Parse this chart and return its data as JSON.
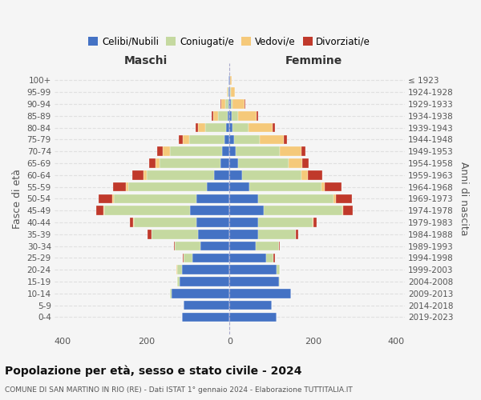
{
  "age_groups": [
    "0-4",
    "5-9",
    "10-14",
    "15-19",
    "20-24",
    "25-29",
    "30-34",
    "35-39",
    "40-44",
    "45-49",
    "50-54",
    "55-59",
    "60-64",
    "65-69",
    "70-74",
    "75-79",
    "80-84",
    "85-89",
    "90-94",
    "95-99",
    "100+"
  ],
  "birth_years": [
    "2019-2023",
    "2014-2018",
    "2009-2013",
    "2004-2008",
    "1999-2003",
    "1994-1998",
    "1989-1993",
    "1984-1988",
    "1979-1983",
    "1974-1978",
    "1969-1973",
    "1964-1968",
    "1959-1963",
    "1954-1958",
    "1949-1953",
    "1944-1948",
    "1939-1943",
    "1934-1938",
    "1929-1933",
    "1924-1928",
    "≤ 1923"
  ],
  "colors": {
    "celibi": "#4472C4",
    "coniugati": "#c5d9a0",
    "vedovi": "#f5c97a",
    "divorziati": "#c0392b"
  },
  "maschi": {
    "celibi": [
      115,
      110,
      140,
      120,
      115,
      90,
      70,
      75,
      80,
      95,
      80,
      55,
      38,
      22,
      18,
      12,
      8,
      5,
      3,
      2,
      2
    ],
    "coniugati": [
      0,
      0,
      3,
      5,
      10,
      20,
      62,
      112,
      150,
      205,
      198,
      188,
      160,
      145,
      125,
      85,
      50,
      22,
      8,
      2,
      0
    ],
    "vedovi": [
      0,
      0,
      0,
      0,
      2,
      0,
      0,
      1,
      2,
      3,
      4,
      5,
      8,
      10,
      18,
      16,
      18,
      12,
      8,
      3,
      1
    ],
    "divorziati": [
      0,
      0,
      0,
      0,
      0,
      2,
      2,
      8,
      8,
      16,
      32,
      32,
      28,
      15,
      12,
      8,
      5,
      3,
      2,
      0,
      0
    ]
  },
  "femmine": {
    "celibi": [
      112,
      102,
      148,
      118,
      112,
      88,
      62,
      68,
      68,
      82,
      68,
      48,
      30,
      20,
      15,
      10,
      8,
      5,
      3,
      2,
      2
    ],
    "coniugati": [
      0,
      0,
      0,
      3,
      8,
      18,
      56,
      92,
      132,
      188,
      182,
      172,
      142,
      122,
      105,
      62,
      38,
      15,
      5,
      2,
      0
    ],
    "vedovi": [
      0,
      0,
      0,
      0,
      0,
      0,
      0,
      0,
      1,
      3,
      5,
      8,
      15,
      32,
      52,
      58,
      58,
      45,
      28,
      8,
      3
    ],
    "divorziati": [
      0,
      0,
      0,
      0,
      0,
      3,
      2,
      5,
      8,
      22,
      38,
      40,
      35,
      15,
      10,
      8,
      5,
      3,
      2,
      0,
      0
    ]
  },
  "xlim": 420,
  "title": "Popolazione per età, sesso e stato civile - 2024",
  "subtitle": "COMUNE DI SAN MARTINO IN RIO (RE) - Dati ISTAT 1° gennaio 2024 - Elaborazione TUTTITALIA.IT",
  "ylabel_left": "Fasce di età",
  "ylabel_right": "Anni di nascita",
  "xlabel_left": "Maschi",
  "xlabel_right": "Femmine",
  "legend_labels": [
    "Celibi/Nubili",
    "Coniugati/e",
    "Vedovi/e",
    "Divorziati/e"
  ],
  "background_color": "#f5f5f5"
}
